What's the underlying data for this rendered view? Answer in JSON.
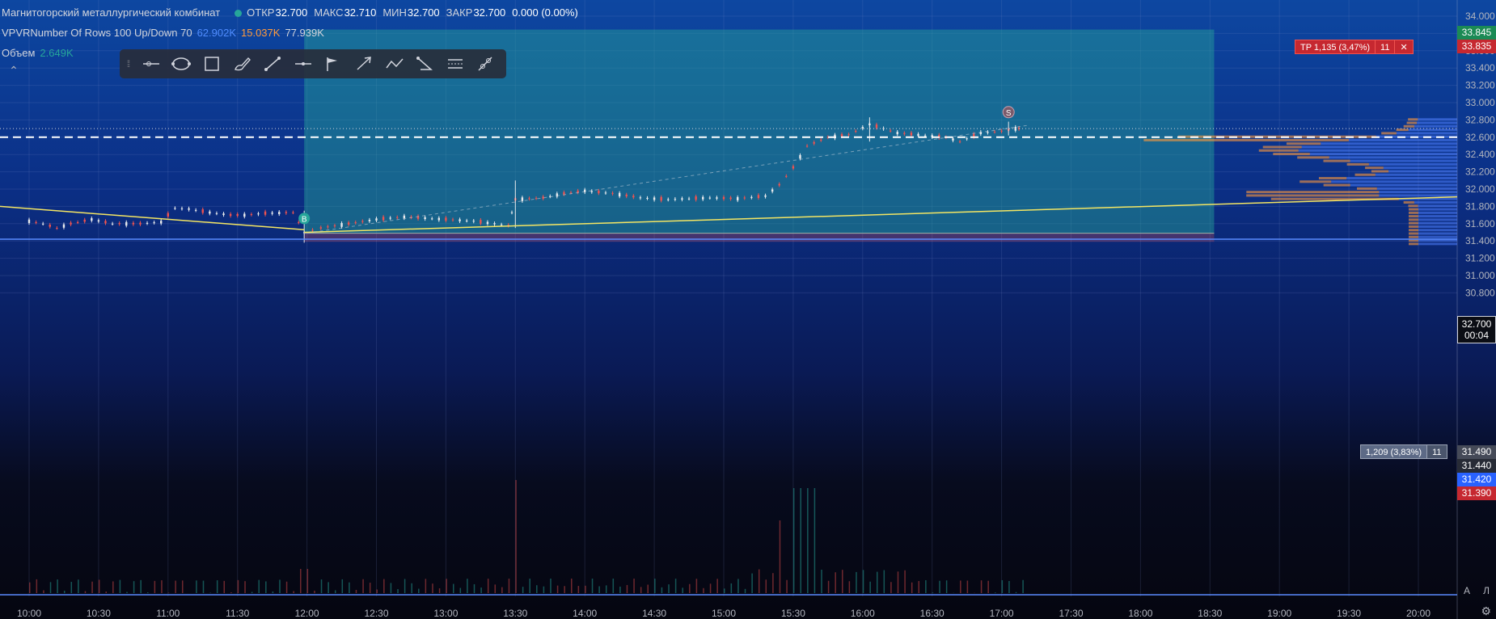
{
  "legend": {
    "title": "Магнитогорский металлургический комбинат",
    "open_label": "ОТКР",
    "open_value": "32.700",
    "high_label": "МАКС",
    "high_value": "32.710",
    "low_label": "МИН",
    "low_value": "32.700",
    "close_label": "ЗАКР",
    "close_value": "32.700",
    "change": "0.000 (0.00%)",
    "vpvr_label": "VPVR",
    "vpvr_params": "Number Of Rows 100 Up/Down 70",
    "vpvr_up": "62.902K",
    "vpvr_down": "15.037K",
    "vpvr_total": "77.939K",
    "volume_label": "Объем",
    "volume_value": "2.649K"
  },
  "toolbar": {
    "grip_icon": "drag-handle-icon",
    "tools": [
      "horizontal-ray-icon",
      "ellipse-icon",
      "rectangle-icon",
      "brush-icon",
      "trend-line-icon",
      "horizontal-line-icon",
      "flag-marks-icon",
      "arrow-icon",
      "path-icon",
      "triangle-icon",
      "parallel-channel-icon",
      "ruler-icon"
    ]
  },
  "price_axis": {
    "ticks": [
      "34.000",
      "33.800",
      "33.600",
      "33.400",
      "33.200",
      "33.000",
      "32.800",
      "32.600",
      "32.400",
      "32.200",
      "32.000",
      "31.800",
      "31.600",
      "31.400",
      "31.200",
      "31.000",
      "30.800"
    ],
    "current_price": "32.700",
    "countdown": "00:04",
    "tag_top_green": "33.845",
    "tag_top_red": "33.835",
    "tag_entry_gray": "31.490",
    "tag_entry_dark": "31.440",
    "tag_blue": "31.420",
    "tag_red_bottom": "31.390"
  },
  "time_axis": {
    "ticks": [
      "10:00",
      "10:30",
      "11:00",
      "11:30",
      "12:00",
      "12:30",
      "13:00",
      "13:30",
      "14:00",
      "14:30",
      "15:00",
      "15:30",
      "16:00",
      "16:30",
      "17:00",
      "17:30",
      "18:00",
      "18:30",
      "19:00",
      "19:30",
      "20:00"
    ]
  },
  "tp_badge": {
    "label": "TP 1,135 (3,47%)",
    "qty": "11",
    "close": "✕"
  },
  "sl_badge": {
    "label": "1,209 (3,83%)",
    "qty": "11"
  },
  "markers": {
    "buy": "B",
    "sell": "S"
  },
  "bottom_right": {
    "auto": "A",
    "log": "Л",
    "settings_icon": "gear-icon"
  },
  "colors": {
    "up": "#26a69a",
    "down": "#ef5350",
    "long_zone": "rgba(38,166,154,0.45)",
    "trend_line": "#f5e663",
    "vpvr_up": "#4f7fff",
    "vpvr_down": "#ff9a3c"
  }
}
